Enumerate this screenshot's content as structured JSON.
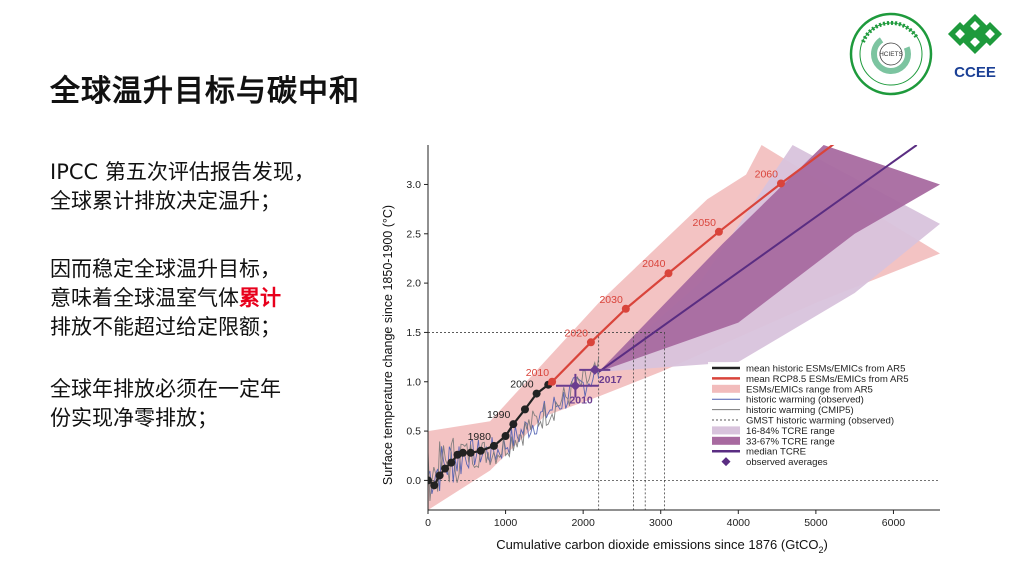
{
  "slide": {
    "title": "全球温升目标与碳中和",
    "paragraphs": [
      [
        "IPCC 第五次评估报告发现，",
        "全球累计排放决定温升；"
      ],
      [
        "因而稳定全球温升目标，",
        "意味着全球温室气体",
        "累计",
        "排放不能超过给定限额；"
      ],
      [
        "全球年排放必须在一定年",
        "份实现净零排放；"
      ]
    ]
  },
  "logos": {
    "left_text": "HCIETS",
    "right_text": "CCEE",
    "right_color": "#1a3f95",
    "green": "#1e9a3c"
  },
  "chart_data": {
    "type": "line",
    "xlabel": "Cumulative carbon dioxide emissions since 1876 (GtCO",
    "xlabel_sub": "2",
    "xlabel_end": ")",
    "ylabel": "Surface temperature change since 1850-1900 (°C)",
    "xlim": [
      0,
      6600
    ],
    "ylim": [
      -0.3,
      3.4
    ],
    "xticks": [
      0,
      1000,
      2000,
      3000,
      4000,
      5000,
      6000
    ],
    "yticks": [
      0.0,
      0.5,
      1.0,
      1.5,
      2.0,
      2.5,
      3.0
    ],
    "xtick_labels": [
      "0",
      "1000",
      "2000",
      "3000",
      "4000",
      "5000",
      "6000"
    ],
    "ytick_labels": [
      "0.0",
      "0.5",
      "1.0",
      "1.5",
      "2.0",
      "2.5",
      "3.0"
    ],
    "series": [
      {
        "name": "mean historic ESMs/EMICs from AR5",
        "color": "#222222",
        "x": [
          0,
          80,
          150,
          220,
          300,
          380,
          450,
          550,
          680,
          850,
          1000,
          1100,
          1250,
          1400,
          1550
        ],
        "y": [
          0.0,
          -0.05,
          0.05,
          0.12,
          0.18,
          0.26,
          0.28,
          0.28,
          0.3,
          0.35,
          0.45,
          0.57,
          0.72,
          0.88,
          0.97
        ],
        "labels": [
          {
            "i": 9,
            "text": "1980"
          },
          {
            "i": 11,
            "text": "1990"
          },
          {
            "i": 13,
            "text": "2000"
          }
        ]
      },
      {
        "name": "mean RCP8.5 ESMs/EMICs from AR5",
        "color": "#d9443b",
        "x": [
          1550,
          1600,
          2100,
          2550,
          3100,
          3750,
          4550,
          5300
        ],
        "y": [
          0.97,
          1.0,
          1.4,
          1.74,
          2.1,
          2.52,
          3.01,
          3.45
        ],
        "labels": [
          {
            "i": 1,
            "text": "2010"
          },
          {
            "i": 2,
            "text": "2020"
          },
          {
            "i": 3,
            "text": "2030"
          },
          {
            "i": 4,
            "text": "2040"
          },
          {
            "i": 5,
            "text": "2050"
          },
          {
            "i": 6,
            "text": "2060"
          }
        ]
      },
      {
        "name": "median TCRE",
        "color": "#5a2d82",
        "x": [
          2200,
          6300
        ],
        "y": [
          1.1,
          3.4
        ]
      }
    ],
    "bands": [
      {
        "name": "ESMs/EMICs range from AR5",
        "color": "#f2bcbc",
        "upper": [
          [
            0,
            0.5
          ],
          [
            800,
            0.6
          ],
          [
            1500,
            1.2
          ],
          [
            2200,
            1.8
          ],
          [
            3000,
            2.4
          ],
          [
            3600,
            2.85
          ],
          [
            4100,
            3.1
          ],
          [
            4300,
            3.4
          ]
        ],
        "lower": [
          [
            0,
            -0.3
          ],
          [
            800,
            0.1
          ],
          [
            1500,
            0.65
          ],
          [
            2200,
            0.85
          ],
          [
            3000,
            1.1
          ],
          [
            4000,
            1.45
          ],
          [
            5000,
            1.8
          ],
          [
            6600,
            2.3
          ]
        ]
      },
      {
        "name": "16-84% TCRE range",
        "color": "#d8c3dc",
        "upper": [
          [
            2200,
            1.1
          ],
          [
            3500,
            2.0
          ],
          [
            4700,
            3.4
          ]
        ],
        "lower": [
          [
            2200,
            1.1
          ],
          [
            4000,
            1.2
          ],
          [
            5500,
            1.9
          ],
          [
            6600,
            2.6
          ]
        ]
      },
      {
        "name": "33-67% TCRE range",
        "color": "#a86aa0",
        "upper": [
          [
            2200,
            1.1
          ],
          [
            3800,
            2.4
          ],
          [
            5100,
            3.4
          ]
        ],
        "lower": [
          [
            2200,
            1.1
          ],
          [
            4000,
            1.6
          ],
          [
            5500,
            2.5
          ],
          [
            6600,
            3.0
          ]
        ]
      }
    ],
    "observed": {
      "name": "historic warming (observed)",
      "color": "#4a5bb0"
    },
    "markers": [
      {
        "label": "2010",
        "x": 1900,
        "y": 0.96,
        "color": "#6b3d8f"
      },
      {
        "label": "2017",
        "x": 2150,
        "y": 1.12,
        "color": "#6b3d8f"
      }
    ],
    "reference": {
      "y": 1.5,
      "x_values": [
        2200,
        2650,
        2800,
        3050
      ],
      "name": "GMST historic warming (observed)"
    },
    "legend": [
      {
        "type": "line",
        "color": "#222222",
        "label": "mean historic ESMs/EMICs from AR5"
      },
      {
        "type": "line",
        "color": "#d9443b",
        "label": "mean RCP8.5 ESMs/EMICs from AR5"
      },
      {
        "type": "box",
        "color": "#f2bcbc",
        "label": "ESMs/EMICs range from AR5"
      },
      {
        "type": "thin",
        "color": "#4a5bb0",
        "label": "historic warming (observed)"
      },
      {
        "type": "thin",
        "color": "#777777",
        "label": "historic warming (CMIP5)"
      },
      {
        "type": "dash",
        "color": "#555555",
        "label": "GMST historic warming (observed)"
      },
      {
        "type": "box",
        "color": "#d8c3dc",
        "label": "16-84% TCRE range"
      },
      {
        "type": "box",
        "color": "#a86aa0",
        "label": "33-67% TCRE range"
      },
      {
        "type": "line",
        "color": "#5a2d82",
        "label": "median TCRE"
      },
      {
        "type": "diamond",
        "color": "#5a2d82",
        "label": "observed averages"
      }
    ]
  }
}
